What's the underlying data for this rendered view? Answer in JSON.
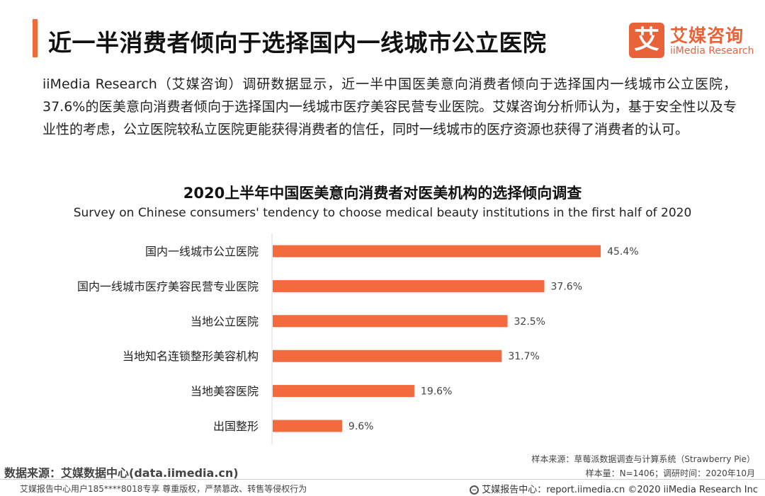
{
  "header": {
    "title": "近一半消费者倾向于选择国内一线城市公立医院",
    "logo_mark": "艾",
    "logo_cn": "艾媒咨询",
    "logo_en": "iiMedia Research"
  },
  "body_text": "iiMedia Research（艾媒咨询）调研数据显示，近一半中国医美意向消费者倾向于选择国内一线城市公立医院，37.6%的医美意向消费者倾向于选择国内一线城市医疗美容民营专业医院。艾媒咨询分析师认为，基于安全性以及专业性的考虑，公立医院较私立医院更能获得消费者的信任，同时一线城市的医疗资源也获得了消费者的认可。",
  "chart_data": {
    "type": "bar",
    "orientation": "horizontal",
    "title": "2020上半年中国医美意向消费者对医美机构的选择倾向调查",
    "subtitle": "Survey on  Chinese consumers' tendency to choose medical beauty institutions in the first half of 2020",
    "categories": [
      "国内一线城市公立医院",
      "国内一线城市医疗美容民营专业医院",
      "当地公立医院",
      "当地知名连锁整形美容机构",
      "当地美容医院",
      "出国整形"
    ],
    "values": [
      45.4,
      37.6,
      32.5,
      31.7,
      19.6,
      9.6
    ],
    "value_labels": [
      "45.4%",
      "37.6%",
      "32.5%",
      "31.7%",
      "19.6%",
      "9.6%"
    ],
    "unit": "%",
    "xlim": [
      0,
      50
    ],
    "bar_color": "#f26a3d",
    "grid": false
  },
  "footer": {
    "source_left": "数据来源：艾媒数据中心(data.iimedia.cn)",
    "sample_source": "样本来源：草莓派数据调查与计算系统（Strawberry Pie）",
    "sample_info": "样本量：N=1406；调研时间：2020年10月",
    "copyright_left": "艾媒报告中心用户185****8018专享 尊重版权，严禁篡改、转售等侵权行为",
    "copyright_right": "艾媒报告中心：report.iimedia.cn  ©2020  iiMedia Research  Inc",
    "globe_icon": "globe-icon"
  }
}
